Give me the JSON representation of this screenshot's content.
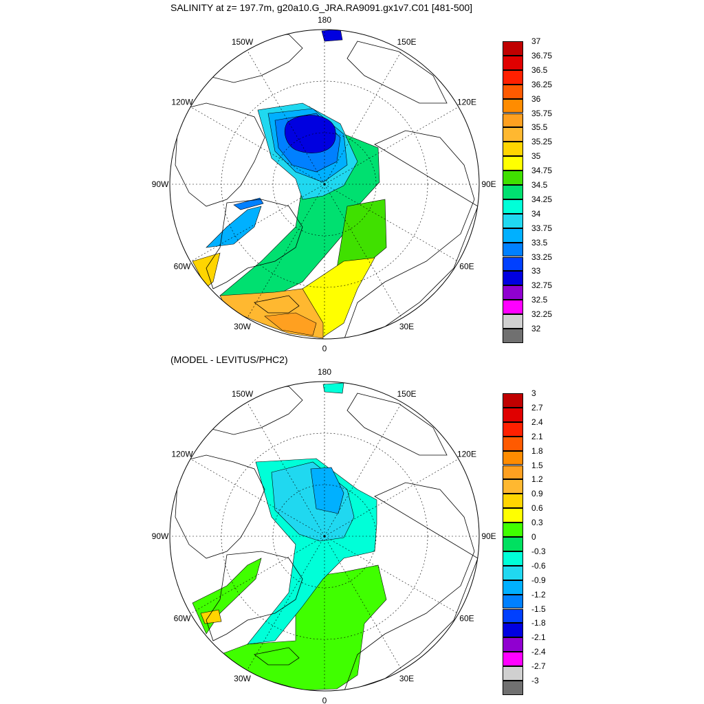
{
  "panels": [
    {
      "title": "SALINITY at z= 197.7m, g20a10.G_JRA.RA9091.gx1v7.C01 [481-500]",
      "lon_labels": [
        "180",
        "150E",
        "120E",
        "90E",
        "60E",
        "30E",
        "0",
        "30W",
        "60W",
        "90W",
        "120W",
        "150W"
      ],
      "colorbar": {
        "labels": [
          "37",
          "36.75",
          "36.5",
          "36.25",
          "36",
          "35.75",
          "35.5",
          "35.25",
          "35",
          "34.75",
          "34.5",
          "34.25",
          "34",
          "33.75",
          "33.5",
          "33.25",
          "33",
          "32.75",
          "32.5",
          "32.25",
          "32"
        ],
        "colors": [
          "#c00000",
          "#e00000",
          "#ff2000",
          "#ff5a00",
          "#ff8c00",
          "#ffa020",
          "#ffb830",
          "#ffd500",
          "#ffff00",
          "#40e000",
          "#00e070",
          "#00ffd8",
          "#20d8f0",
          "#00b0ff",
          "#0080ff",
          "#0040ff",
          "#0000e0",
          "#9000d0",
          "#ff00ff",
          "#d0d0d0",
          "#707070"
        ]
      }
    },
    {
      "title": "(MODEL - LEVITUS/PHC2)",
      "lon_labels": [
        "180",
        "150E",
        "120E",
        "90E",
        "60E",
        "30E",
        "0",
        "30W",
        "60W",
        "90W",
        "120W",
        "150W"
      ],
      "colorbar": {
        "labels": [
          "3",
          "2.7",
          "2.4",
          "2.1",
          "1.8",
          "1.5",
          "1.2",
          "0.9",
          "0.6",
          "0.3",
          "0",
          "-0.3",
          "-0.6",
          "-0.9",
          "-1.2",
          "-1.5",
          "-1.8",
          "-2.1",
          "-2.4",
          "-2.7",
          "-3"
        ],
        "colors": [
          "#c00000",
          "#e00000",
          "#ff2000",
          "#ff5a00",
          "#ff8c00",
          "#ffa020",
          "#ffb830",
          "#ffd500",
          "#ffff00",
          "#40ff00",
          "#00e060",
          "#00ffd8",
          "#20d8f0",
          "#00b0ff",
          "#0080ff",
          "#0040ff",
          "#0000e0",
          "#9000d0",
          "#ff00ff",
          "#d0d0d0",
          "#707070"
        ]
      }
    }
  ]
}
